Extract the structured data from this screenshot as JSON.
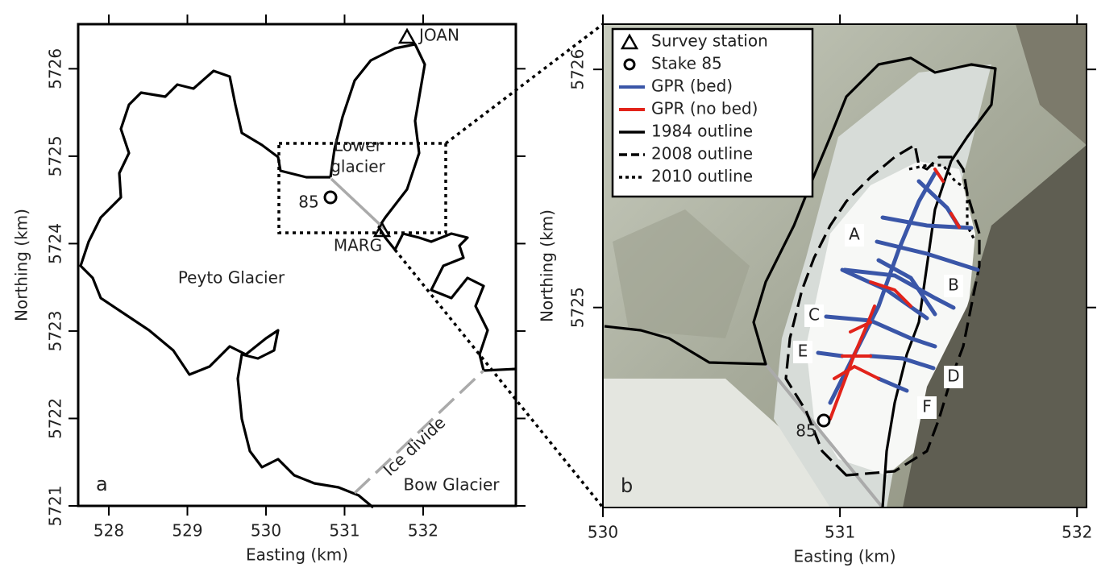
{
  "panels": [
    {
      "label": "a",
      "xlabel": "Easting (km)",
      "ylabel": "Northing (km)",
      "xlim": [
        527.61,
        533.18
      ],
      "ylim": [
        5721,
        5726.51
      ],
      "xticks": [
        528,
        529,
        530,
        531,
        532
      ],
      "yticks": [
        5721,
        5722,
        5723,
        5724,
        5725,
        5726
      ],
      "annotations": [
        "JOAN",
        "Lower",
        "glacier",
        "85",
        "MARG",
        "Peyto Glacier",
        "Ice divide",
        "Bow Glacier"
      ]
    },
    {
      "label": "b",
      "xlabel": "Easting (km)",
      "ylabel": "Northing (km)",
      "xlim": [
        530,
        532.04
      ],
      "ylim": [
        5724.16,
        5726.19
      ],
      "xticks": [
        530,
        531,
        532
      ],
      "yticks": [
        5725,
        5726
      ],
      "legend": [
        "Survey station",
        "Stake 85",
        "GPR (bed)",
        "GPR (no bed)",
        "1984 outline",
        "2008 outline",
        "2010 outline"
      ],
      "line_labels": [
        "A",
        "B",
        "C",
        "D",
        "E",
        "F"
      ],
      "stake_label": "85"
    }
  ]
}
